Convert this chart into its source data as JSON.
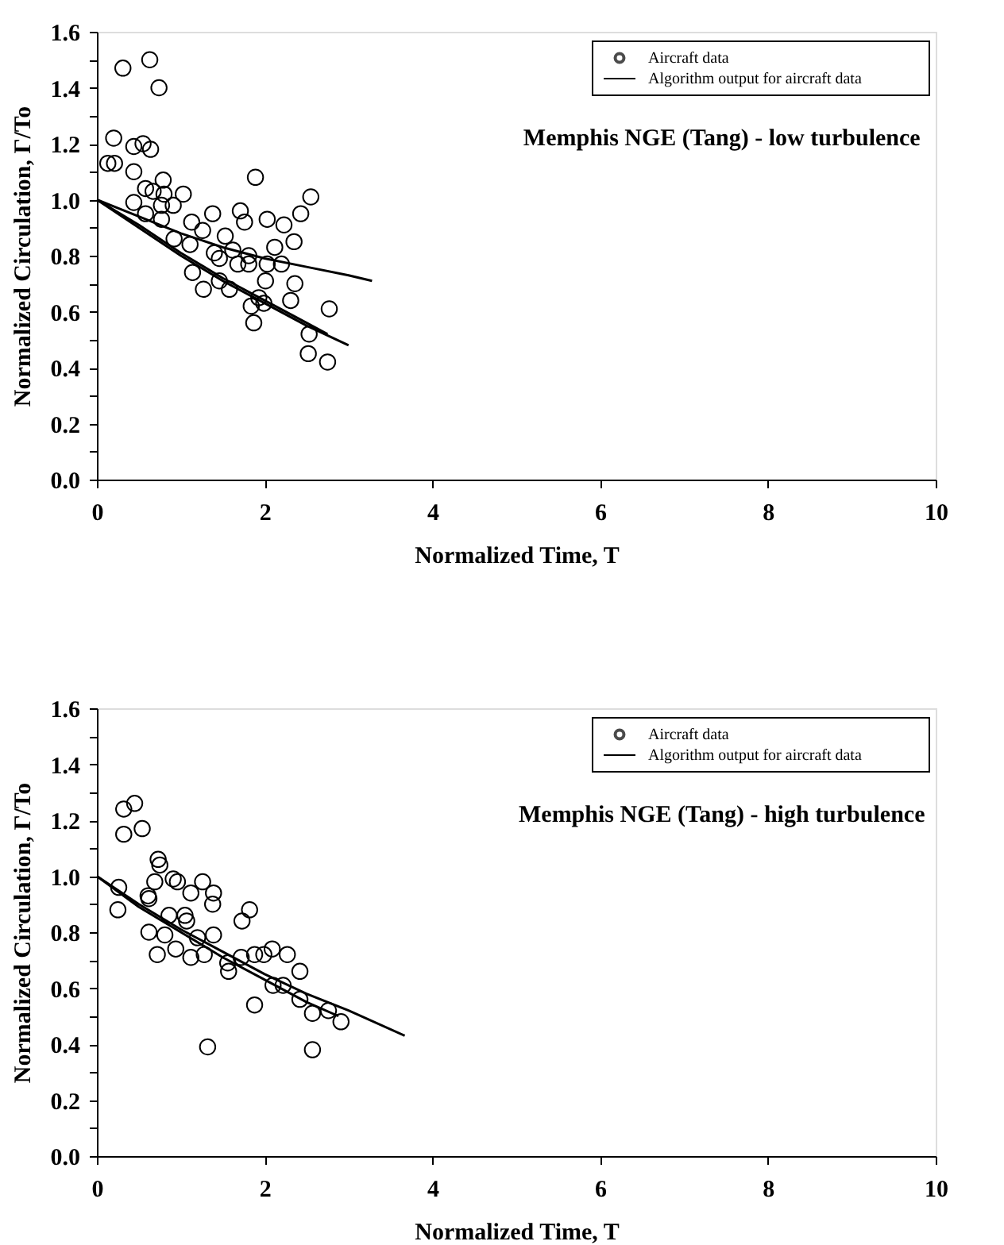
{
  "chart_data": [
    {
      "type": "scatter",
      "xlabel": "Normalized Time, T",
      "ylabel": "Normalized Circulation, Γ/Το",
      "annotations": [
        "Memphis NGE (Tang) - low turbulence"
      ],
      "xlim": [
        0,
        10
      ],
      "ylim": [
        0,
        1.6
      ],
      "xticks": [
        0,
        2,
        4,
        6,
        8,
        10
      ],
      "yticks": [
        {
          "value": 0,
          "label": "0.0"
        },
        {
          "value": 0.1,
          "label": null
        },
        0.2,
        {
          "value": 0.3,
          "label": null
        },
        0.4,
        {
          "value": 0.5,
          "label": null
        },
        0.6,
        {
          "value": 0.7,
          "label": null
        },
        0.8,
        {
          "value": 0.9,
          "label": null
        },
        {
          "value": 1,
          "label": "1.0"
        },
        {
          "value": 1.1,
          "label": null
        },
        1.2,
        {
          "value": 1.3,
          "label": null
        },
        1.4,
        {
          "value": 1.5,
          "label": null
        },
        1.6
      ],
      "grid": false,
      "legend": "top right",
      "line_style": "solid",
      "series": [
        {
          "name": "Aircraft data",
          "marker": "circle",
          "color": "#000000",
          "x": [
            0.31,
            0.63,
            0.74,
            0.2,
            0.13,
            0.21,
            0.44,
            0.55,
            0.64,
            0.44,
            0.79,
            0.58,
            0.67,
            0.8,
            1.03,
            0.44,
            0.58,
            0.77,
            0.77,
            0.91,
            1.13,
            1.38,
            1.71,
            1.76,
            2.03,
            2.23,
            2.43,
            2.55,
            1.89,
            1.26,
            1.53,
            0.92,
            1.11,
            1.4,
            1.46,
            1.62,
            1.68,
            1.81,
            1.81,
            2.03,
            2.12,
            2.2,
            2.35,
            2.01,
            1.14,
            1.27,
            1.46,
            1.58,
            1.84,
            1.93,
            1.99,
            1.87,
            2.36,
            2.31,
            2.53,
            2.52,
            2.75,
            2.77
          ],
          "values": [
            1.47,
            1.5,
            1.4,
            1.22,
            1.13,
            1.13,
            1.19,
            1.2,
            1.18,
            1.1,
            1.07,
            1.04,
            1.03,
            1.02,
            1.02,
            0.99,
            0.95,
            0.98,
            0.93,
            0.98,
            0.92,
            0.95,
            0.96,
            0.92,
            0.93,
            0.91,
            0.95,
            1.01,
            1.08,
            0.89,
            0.87,
            0.86,
            0.84,
            0.81,
            0.79,
            0.82,
            0.77,
            0.8,
            0.77,
            0.77,
            0.83,
            0.77,
            0.85,
            0.71,
            0.74,
            0.68,
            0.71,
            0.68,
            0.62,
            0.65,
            0.63,
            0.56,
            0.7,
            0.64,
            0.52,
            0.45,
            0.42,
            0.61
          ]
        },
        {
          "name": "Algorithm output for aircraft data",
          "type": "line",
          "color": "#000000",
          "x": [
            0,
            0.5,
            1,
            1.5,
            2,
            2.5,
            3,
            3.28
          ],
          "values": [
            1,
            0.94,
            0.88,
            0.83,
            0.79,
            0.76,
            0.73,
            0.71
          ]
        },
        {
          "type": "line",
          "color": "#000000",
          "x": [
            0,
            0.5,
            1,
            1.5,
            2,
            2.5,
            3
          ],
          "values": [
            1,
            0.9,
            0.8,
            0.71,
            0.63,
            0.55,
            0.48
          ]
        },
        {
          "type": "line",
          "color": "#000000",
          "x": [
            0,
            0.5,
            1,
            1.5,
            2,
            2.5,
            2.75
          ],
          "values": [
            1,
            0.91,
            0.81,
            0.72,
            0.64,
            0.56,
            0.52
          ]
        }
      ]
    },
    {
      "type": "scatter",
      "xlabel": "Normalized Time, T",
      "ylabel": "Normalized Circulation, Γ/Το",
      "annotations": [
        "Memphis NGE (Tang) - high turbulence"
      ],
      "xlim": [
        0,
        10
      ],
      "ylim": [
        0,
        1.6
      ],
      "xticks": [
        0,
        2,
        4,
        6,
        8,
        10
      ],
      "yticks": [
        {
          "value": 0,
          "label": "0.0"
        },
        {
          "value": 0.1,
          "label": null
        },
        0.2,
        {
          "value": 0.3,
          "label": null
        },
        0.4,
        {
          "value": 0.5,
          "label": null
        },
        0.6,
        {
          "value": 0.7,
          "label": null
        },
        0.8,
        {
          "value": 0.9,
          "label": null
        },
        {
          "value": 1,
          "label": "1.0"
        },
        {
          "value": 1.1,
          "label": null
        },
        1.2,
        {
          "value": 1.3,
          "label": null
        },
        1.4,
        {
          "value": 1.5,
          "label": null
        },
        1.6
      ],
      "grid": false,
      "legend": "top right",
      "line_style": "solid",
      "series": [
        {
          "name": "Aircraft data",
          "marker": "circle",
          "color": "#000000",
          "x": [
            0.32,
            0.45,
            0.32,
            0.54,
            0.73,
            0.75,
            0.69,
            0.61,
            0.62,
            0.91,
            0.96,
            1.12,
            1.26,
            1.39,
            1.38,
            0.26,
            0.25,
            0.62,
            0.72,
            0.86,
            0.81,
            0.94,
            1.05,
            1.07,
            1.12,
            1.2,
            1.28,
            1.39,
            1.56,
            1.57,
            1.73,
            1.82,
            1.72,
            1.88,
            1.99,
            2.09,
            2.27,
            2.1,
            2.22,
            2.42,
            2.42,
            2.57,
            2.76,
            2.91,
            1.88,
            1.32,
            2.57
          ],
          "values": [
            1.24,
            1.26,
            1.15,
            1.17,
            1.06,
            1.04,
            0.98,
            0.93,
            0.92,
            0.99,
            0.98,
            0.94,
            0.98,
            0.94,
            0.9,
            0.96,
            0.88,
            0.8,
            0.72,
            0.86,
            0.79,
            0.74,
            0.86,
            0.84,
            0.71,
            0.78,
            0.72,
            0.79,
            0.69,
            0.66,
            0.84,
            0.88,
            0.71,
            0.72,
            0.72,
            0.74,
            0.72,
            0.61,
            0.61,
            0.66,
            0.56,
            0.51,
            0.52,
            0.48,
            0.54,
            0.39,
            0.38
          ]
        },
        {
          "name": "Algorithm output for aircraft data",
          "type": "line",
          "color": "#000000",
          "x": [
            0,
            0.5,
            1,
            1.5,
            2,
            2.5,
            3,
            3.67
          ],
          "values": [
            1,
            0.9,
            0.81,
            0.73,
            0.65,
            0.58,
            0.52,
            0.43
          ]
        },
        {
          "type": "line",
          "color": "#000000",
          "x": [
            0,
            0.5,
            1,
            1.5,
            2,
            2.5,
            2.88
          ],
          "values": [
            1,
            0.89,
            0.8,
            0.71,
            0.63,
            0.55,
            0.5
          ]
        }
      ]
    }
  ]
}
